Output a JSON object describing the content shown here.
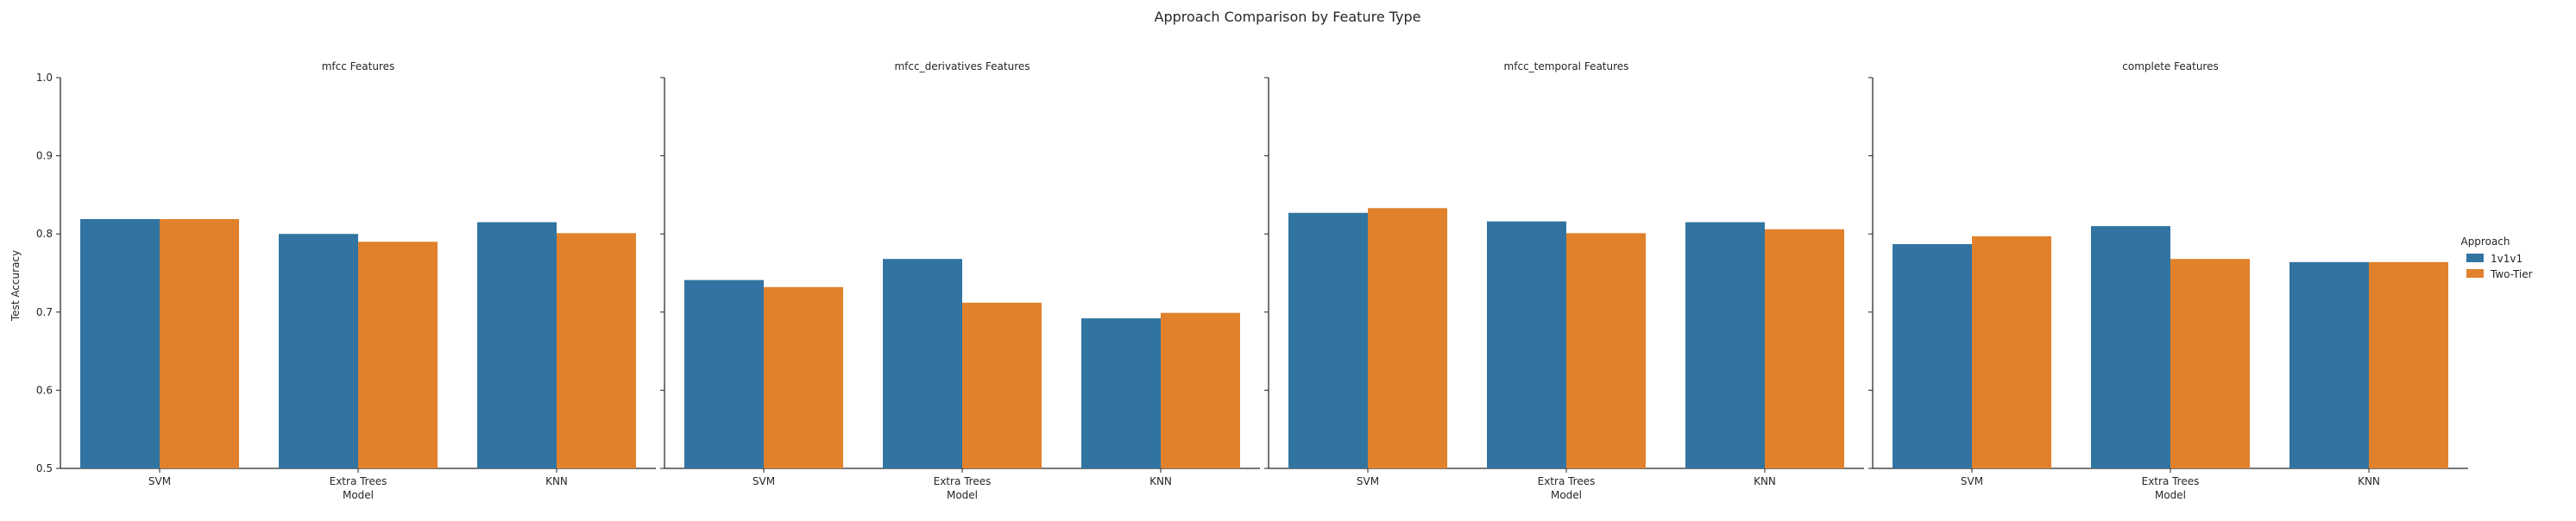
{
  "chart_data": {
    "type": "bar",
    "title": "Approach Comparison by Feature Type",
    "ylabel": "Test Accuracy",
    "xlabel": "Model",
    "ylim": [
      0.5,
      1.0
    ],
    "yticks": [
      0.5,
      0.6,
      0.7,
      0.8,
      0.9,
      1.0
    ],
    "categories": [
      "SVM",
      "Extra Trees",
      "KNN"
    ],
    "legend": {
      "title": "Approach",
      "placement": "right",
      "entries": [
        {
          "name": "1v1v1",
          "color": "#3274a1"
        },
        {
          "name": "Two-Tier",
          "color": "#e1812c"
        }
      ]
    },
    "panels": [
      {
        "title": "mfcc Features",
        "series": [
          {
            "name": "1v1v1",
            "values": [
              0.819,
              0.8,
              0.815
            ]
          },
          {
            "name": "Two-Tier",
            "values": [
              0.819,
              0.79,
              0.801
            ]
          }
        ]
      },
      {
        "title": "mfcc_derivatives Features",
        "series": [
          {
            "name": "1v1v1",
            "values": [
              0.741,
              0.768,
              0.692
            ]
          },
          {
            "name": "Two-Tier",
            "values": [
              0.732,
              0.712,
              0.699
            ]
          }
        ]
      },
      {
        "title": "mfcc_temporal Features",
        "series": [
          {
            "name": "1v1v1",
            "values": [
              0.827,
              0.816,
              0.815
            ]
          },
          {
            "name": "Two-Tier",
            "values": [
              0.833,
              0.801,
              0.806
            ]
          }
        ]
      },
      {
        "title": "complete Features",
        "series": [
          {
            "name": "1v1v1",
            "values": [
              0.787,
              0.81,
              0.764
            ]
          },
          {
            "name": "Two-Tier",
            "values": [
              0.797,
              0.768,
              0.764
            ]
          }
        ]
      }
    ]
  }
}
